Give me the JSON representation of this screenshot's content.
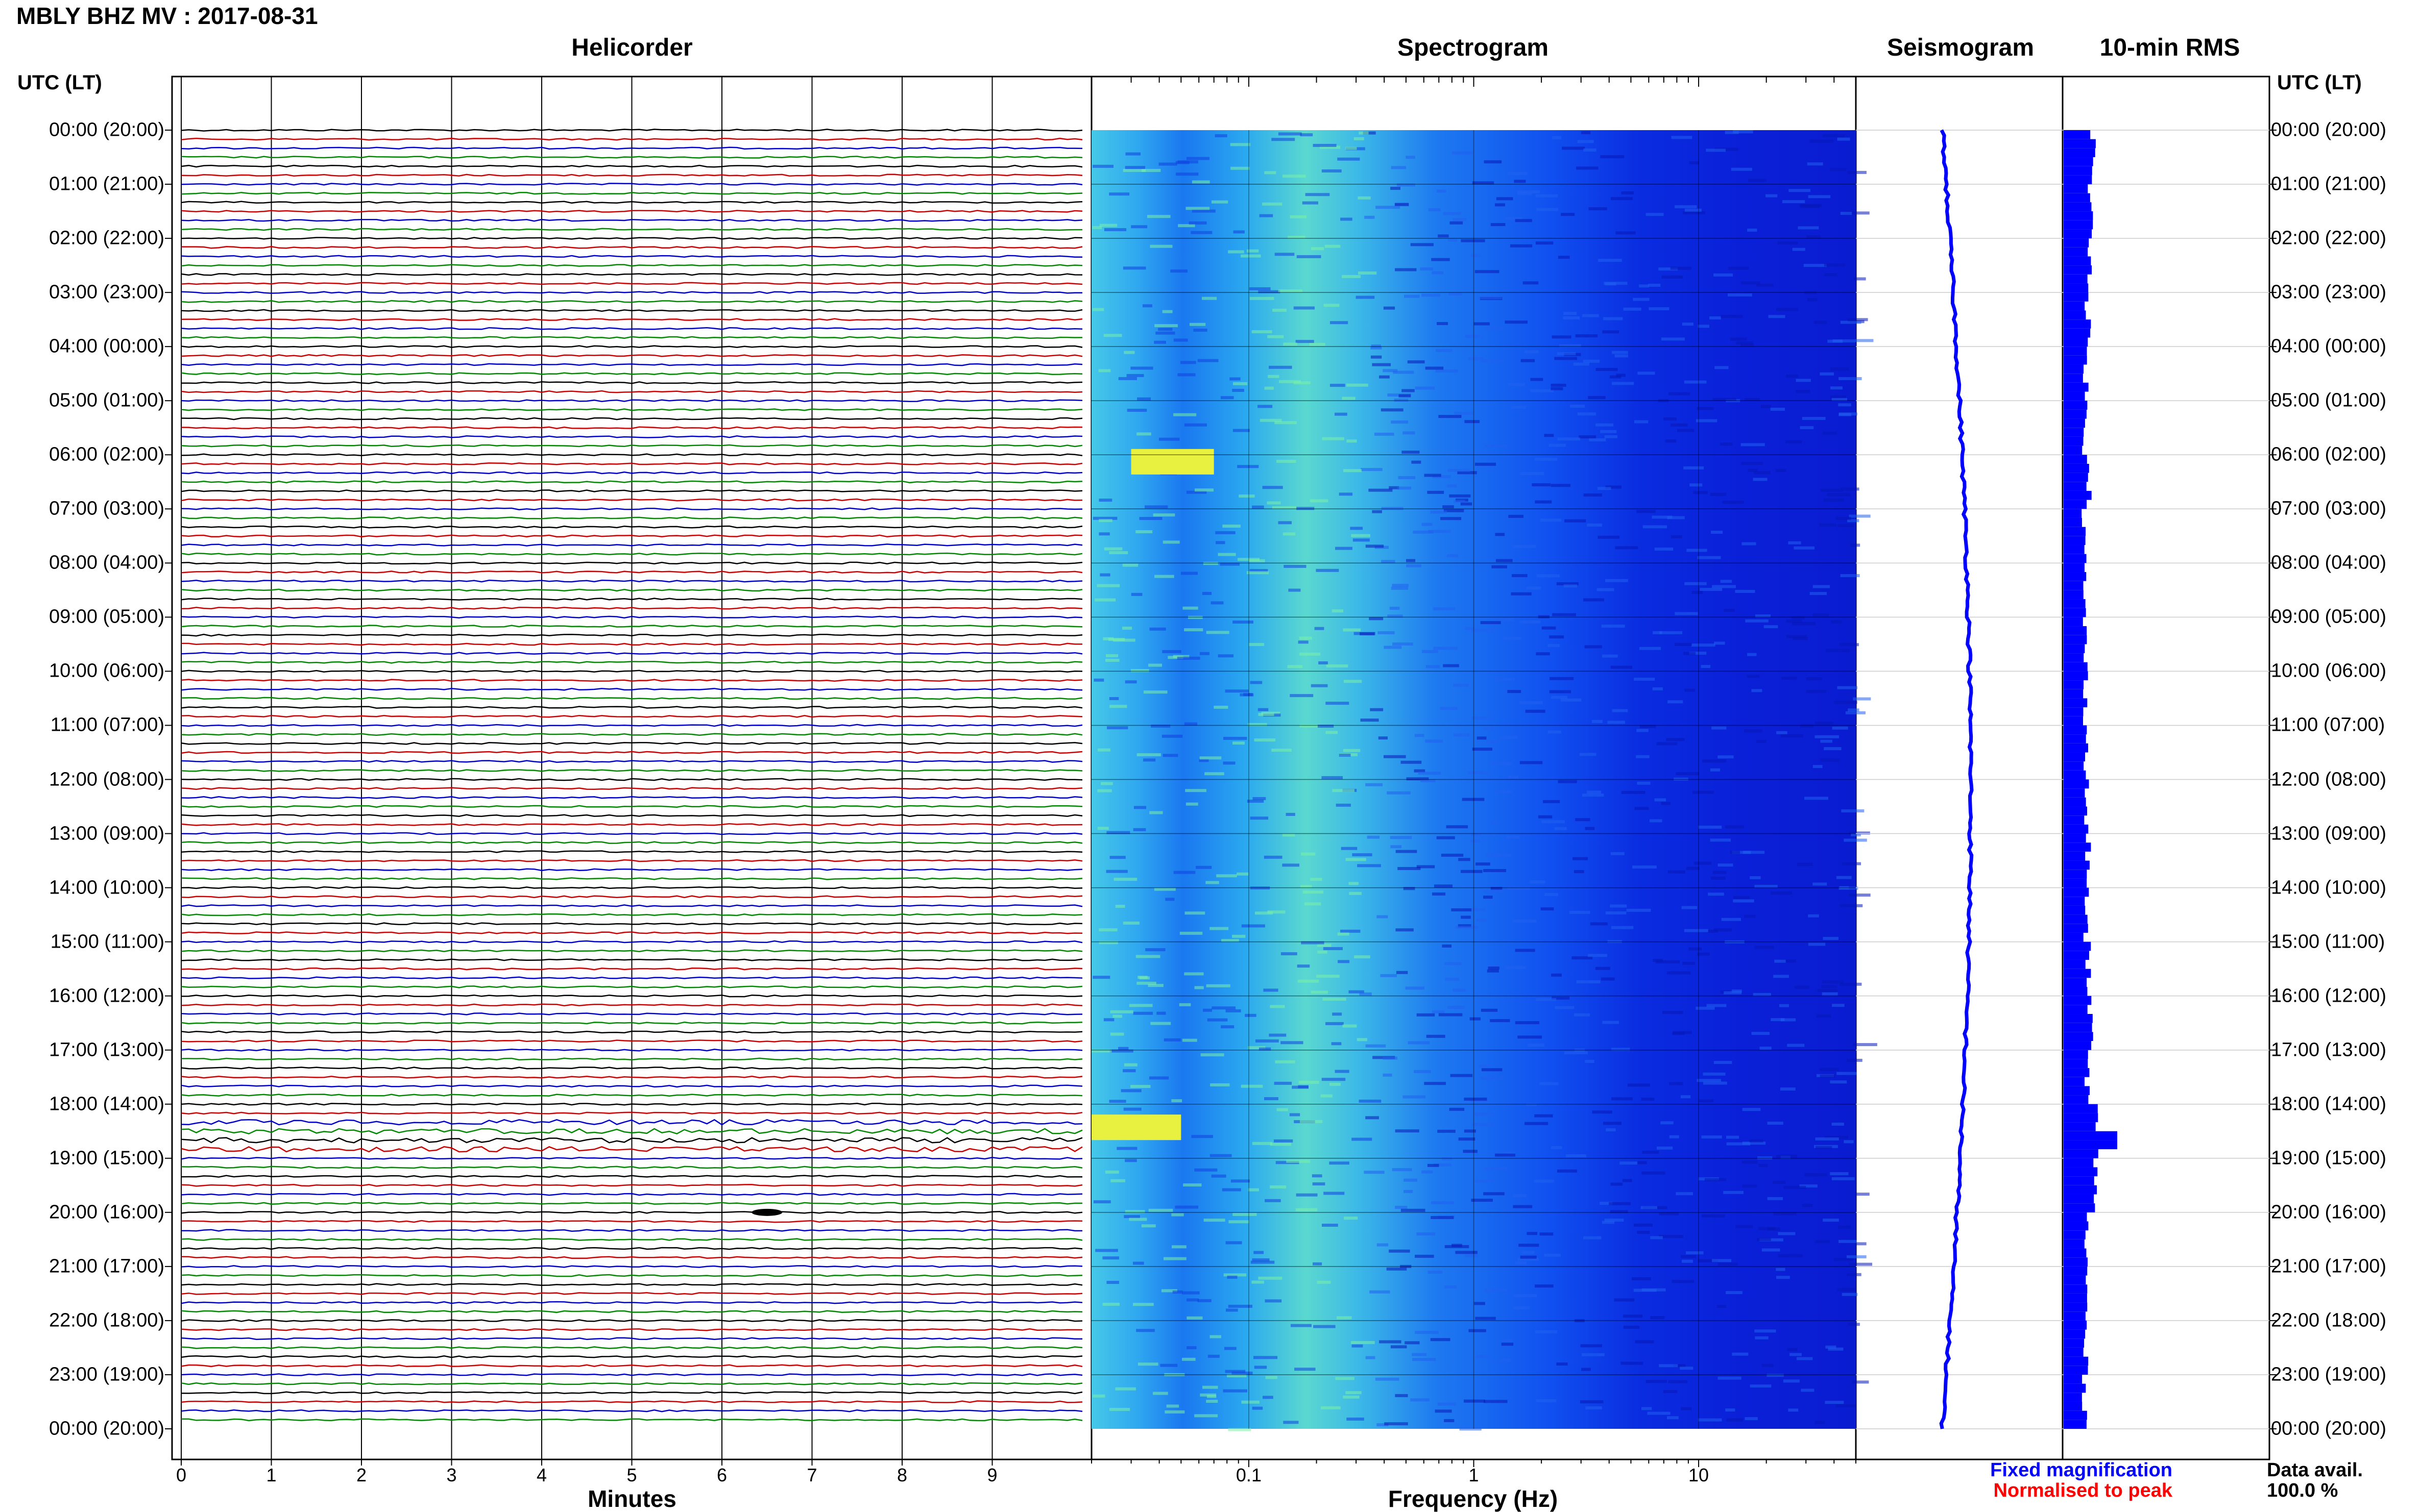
{
  "title": "MBLY BHZ MV : 2017-08-31",
  "panels": {
    "helicorder": "Helicorder",
    "spectrogram": "Spectrogram",
    "seismogram": "Seismogram",
    "rms": "10-min RMS"
  },
  "utc_header_left": "UTC (LT)",
  "utc_header_right": "UTC (LT)",
  "time_labels": [
    "00:00 (20:00)",
    "01:00 (21:00)",
    "02:00 (22:00)",
    "03:00 (23:00)",
    "04:00 (00:00)",
    "05:00 (01:00)",
    "06:00 (02:00)",
    "07:00 (03:00)",
    "08:00 (04:00)",
    "09:00 (05:00)",
    "10:00 (06:00)",
    "11:00 (07:00)",
    "12:00 (08:00)",
    "13:00 (09:00)",
    "14:00 (10:00)",
    "15:00 (11:00)",
    "16:00 (12:00)",
    "17:00 (13:00)",
    "18:00 (14:00)",
    "19:00 (15:00)",
    "20:00 (16:00)",
    "21:00 (17:00)",
    "22:00 (18:00)",
    "23:00 (19:00)",
    "00:00 (20:00)"
  ],
  "xaxis_helicorder": {
    "label": "Minutes",
    "ticks": [
      "0",
      "1",
      "2",
      "3",
      "4",
      "5",
      "6",
      "7",
      "8",
      "9"
    ]
  },
  "xaxis_spectrogram": {
    "label": "Frequency (Hz)",
    "ticks": [
      "0.1",
      "1",
      "10"
    ]
  },
  "legend": {
    "fixed": "Fixed magnification",
    "normalised": "Normalised to peak",
    "fixed_color": "#0000ff",
    "normalised_color": "#ff0000"
  },
  "availability": {
    "label": "Data avail.",
    "value": "100.0 %"
  },
  "colors": {
    "trace_cycle": [
      "#000000",
      "#cc0000",
      "#0000cc",
      "#008800"
    ],
    "rms_bar": "#0000ff",
    "seismogram": "#0000ff"
  },
  "chart_data": {
    "type": "heatmap",
    "title": "MBLY BHZ MV : 2017-08-31",
    "helicorder": {
      "xlabel": "Minutes",
      "xlim": [
        0,
        10
      ],
      "rows": 144,
      "row_minutes": 10,
      "trace_colors": [
        "#000000",
        "#cc0000",
        "#0000cc",
        "#008800"
      ],
      "events": [
        {
          "hour": 20.0,
          "minute": 6.5
        },
        {
          "hour": 18.4,
          "minute": 5.0
        }
      ]
    },
    "spectrogram": {
      "xlabel": "Frequency (Hz)",
      "xscale": "log",
      "xlim": [
        0.02,
        50
      ],
      "colormap": "jet",
      "peak_band_hz": [
        0.2,
        0.4
      ],
      "notes": [
        {
          "hour": 18.4,
          "freq_band": [
            0.02,
            0.05
          ]
        },
        {
          "hour": 6.1,
          "freq_band": [
            0.03,
            0.07
          ]
        }
      ]
    },
    "seismogram": {
      "ylim_hours": [
        0,
        24
      ]
    },
    "rms_10min": {
      "type": "bar",
      "hours": [
        0,
        1,
        2,
        3,
        4,
        5,
        6,
        7,
        8,
        9,
        10,
        11,
        12,
        13,
        14,
        15,
        16,
        17,
        18,
        19,
        20,
        21,
        22,
        23
      ],
      "values": [
        0.55,
        0.5,
        0.5,
        0.45,
        0.42,
        0.4,
        0.48,
        0.38,
        0.38,
        0.4,
        0.42,
        0.42,
        0.42,
        0.45,
        0.42,
        0.45,
        0.5,
        0.45,
        0.6,
        0.6,
        0.42,
        0.42,
        0.4,
        0.4
      ]
    },
    "ylabel": "UTC (LT)"
  }
}
